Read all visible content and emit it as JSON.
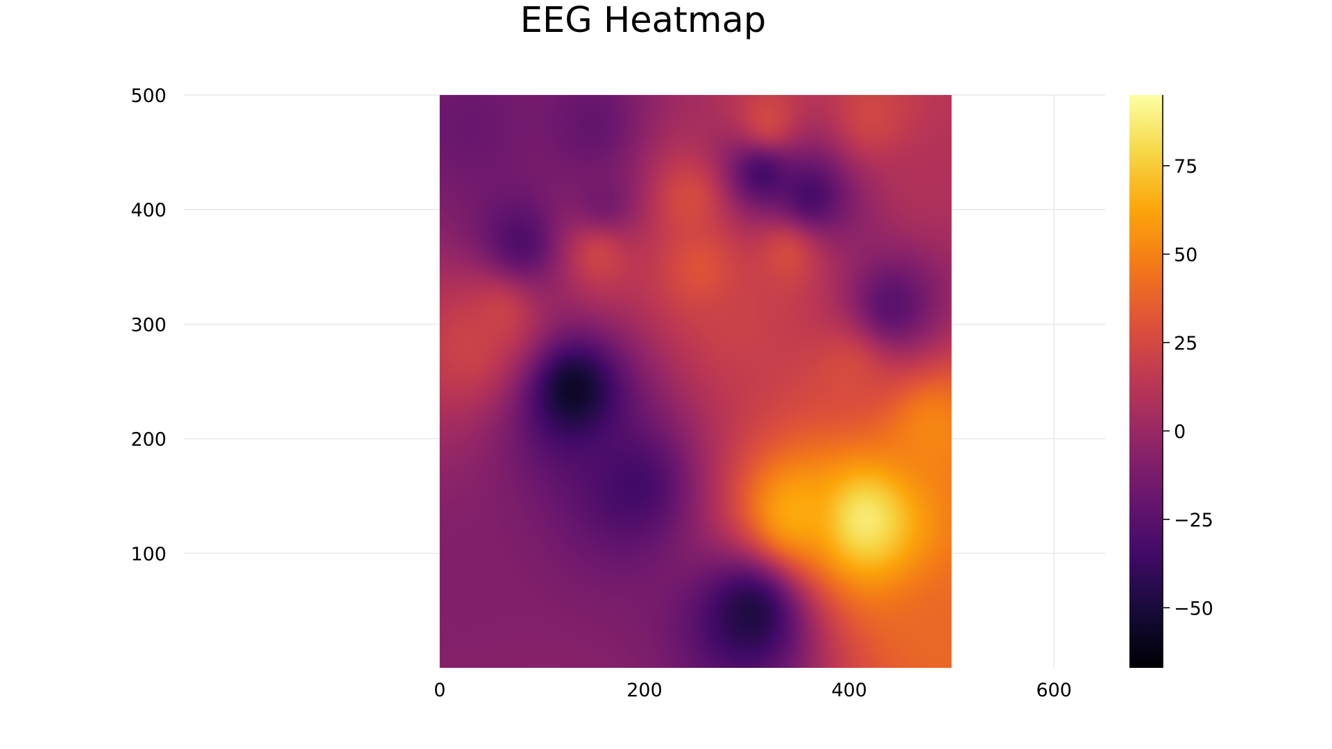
{
  "chart_data": {
    "type": "heatmap",
    "title": "EEG Heatmap",
    "xlabel": "",
    "ylabel": "",
    "xlim": [
      -250,
      650
    ],
    "ylim": [
      0,
      500
    ],
    "data_extent": {
      "x": [
        0,
        500
      ],
      "y": [
        0,
        500
      ]
    },
    "x_ticks": [
      "0",
      "200",
      "400",
      "600"
    ],
    "x_tick_values": [
      0,
      200,
      400,
      600
    ],
    "y_ticks": [
      "100",
      "200",
      "300",
      "400",
      "500"
    ],
    "y_tick_values": [
      100,
      200,
      300,
      400,
      500
    ],
    "colorbar": {
      "range": [
        -67,
        95
      ],
      "ticks": [
        "−50",
        "−25",
        "0",
        "25",
        "50",
        "75"
      ],
      "tick_values": [
        -50,
        -25,
        0,
        25,
        50,
        75
      ],
      "colormap": "inferno"
    },
    "grid": true,
    "legend": "none",
    "field_features": [
      {
        "x": 415,
        "y": 130,
        "value": 95,
        "kind": "max"
      },
      {
        "x": 345,
        "y": 135,
        "value": 70,
        "kind": "high"
      },
      {
        "x": 480,
        "y": 210,
        "value": 55,
        "kind": "high"
      },
      {
        "x": 490,
        "y": 30,
        "value": 40,
        "kind": "high"
      },
      {
        "x": 130,
        "y": 245,
        "value": -67,
        "kind": "min"
      },
      {
        "x": 305,
        "y": 50,
        "value": -55,
        "kind": "min"
      },
      {
        "x": 315,
        "y": 435,
        "value": -62,
        "kind": "min"
      },
      {
        "x": 360,
        "y": 410,
        "value": -50,
        "kind": "min"
      },
      {
        "x": 440,
        "y": 315,
        "value": -35,
        "kind": "low"
      },
      {
        "x": 80,
        "y": 370,
        "value": -40,
        "kind": "low"
      },
      {
        "x": 160,
        "y": 400,
        "value": -28,
        "kind": "low"
      },
      {
        "x": 30,
        "y": 470,
        "value": -20,
        "kind": "low"
      },
      {
        "x": 150,
        "y": 470,
        "value": -25,
        "kind": "low"
      },
      {
        "x": 190,
        "y": 160,
        "value": -38,
        "kind": "low"
      },
      {
        "x": 20,
        "y": 80,
        "value": -10,
        "kind": "low"
      },
      {
        "x": 60,
        "y": 310,
        "value": 28,
        "kind": "high"
      },
      {
        "x": 30,
        "y": 280,
        "value": 25,
        "kind": "high"
      },
      {
        "x": 155,
        "y": 365,
        "value": 38,
        "kind": "high"
      },
      {
        "x": 245,
        "y": 410,
        "value": 35,
        "kind": "high"
      },
      {
        "x": 255,
        "y": 350,
        "value": 38,
        "kind": "high"
      },
      {
        "x": 340,
        "y": 365,
        "value": 40,
        "kind": "high"
      },
      {
        "x": 320,
        "y": 470,
        "value": 45,
        "kind": "high"
      },
      {
        "x": 420,
        "y": 480,
        "value": 28,
        "kind": "high"
      },
      {
        "x": 470,
        "y": 420,
        "value": 10,
        "kind": "mid"
      },
      {
        "x": 290,
        "y": 300,
        "value": 22,
        "kind": "mid"
      },
      {
        "x": 400,
        "y": 260,
        "value": 30,
        "kind": "high"
      }
    ]
  }
}
